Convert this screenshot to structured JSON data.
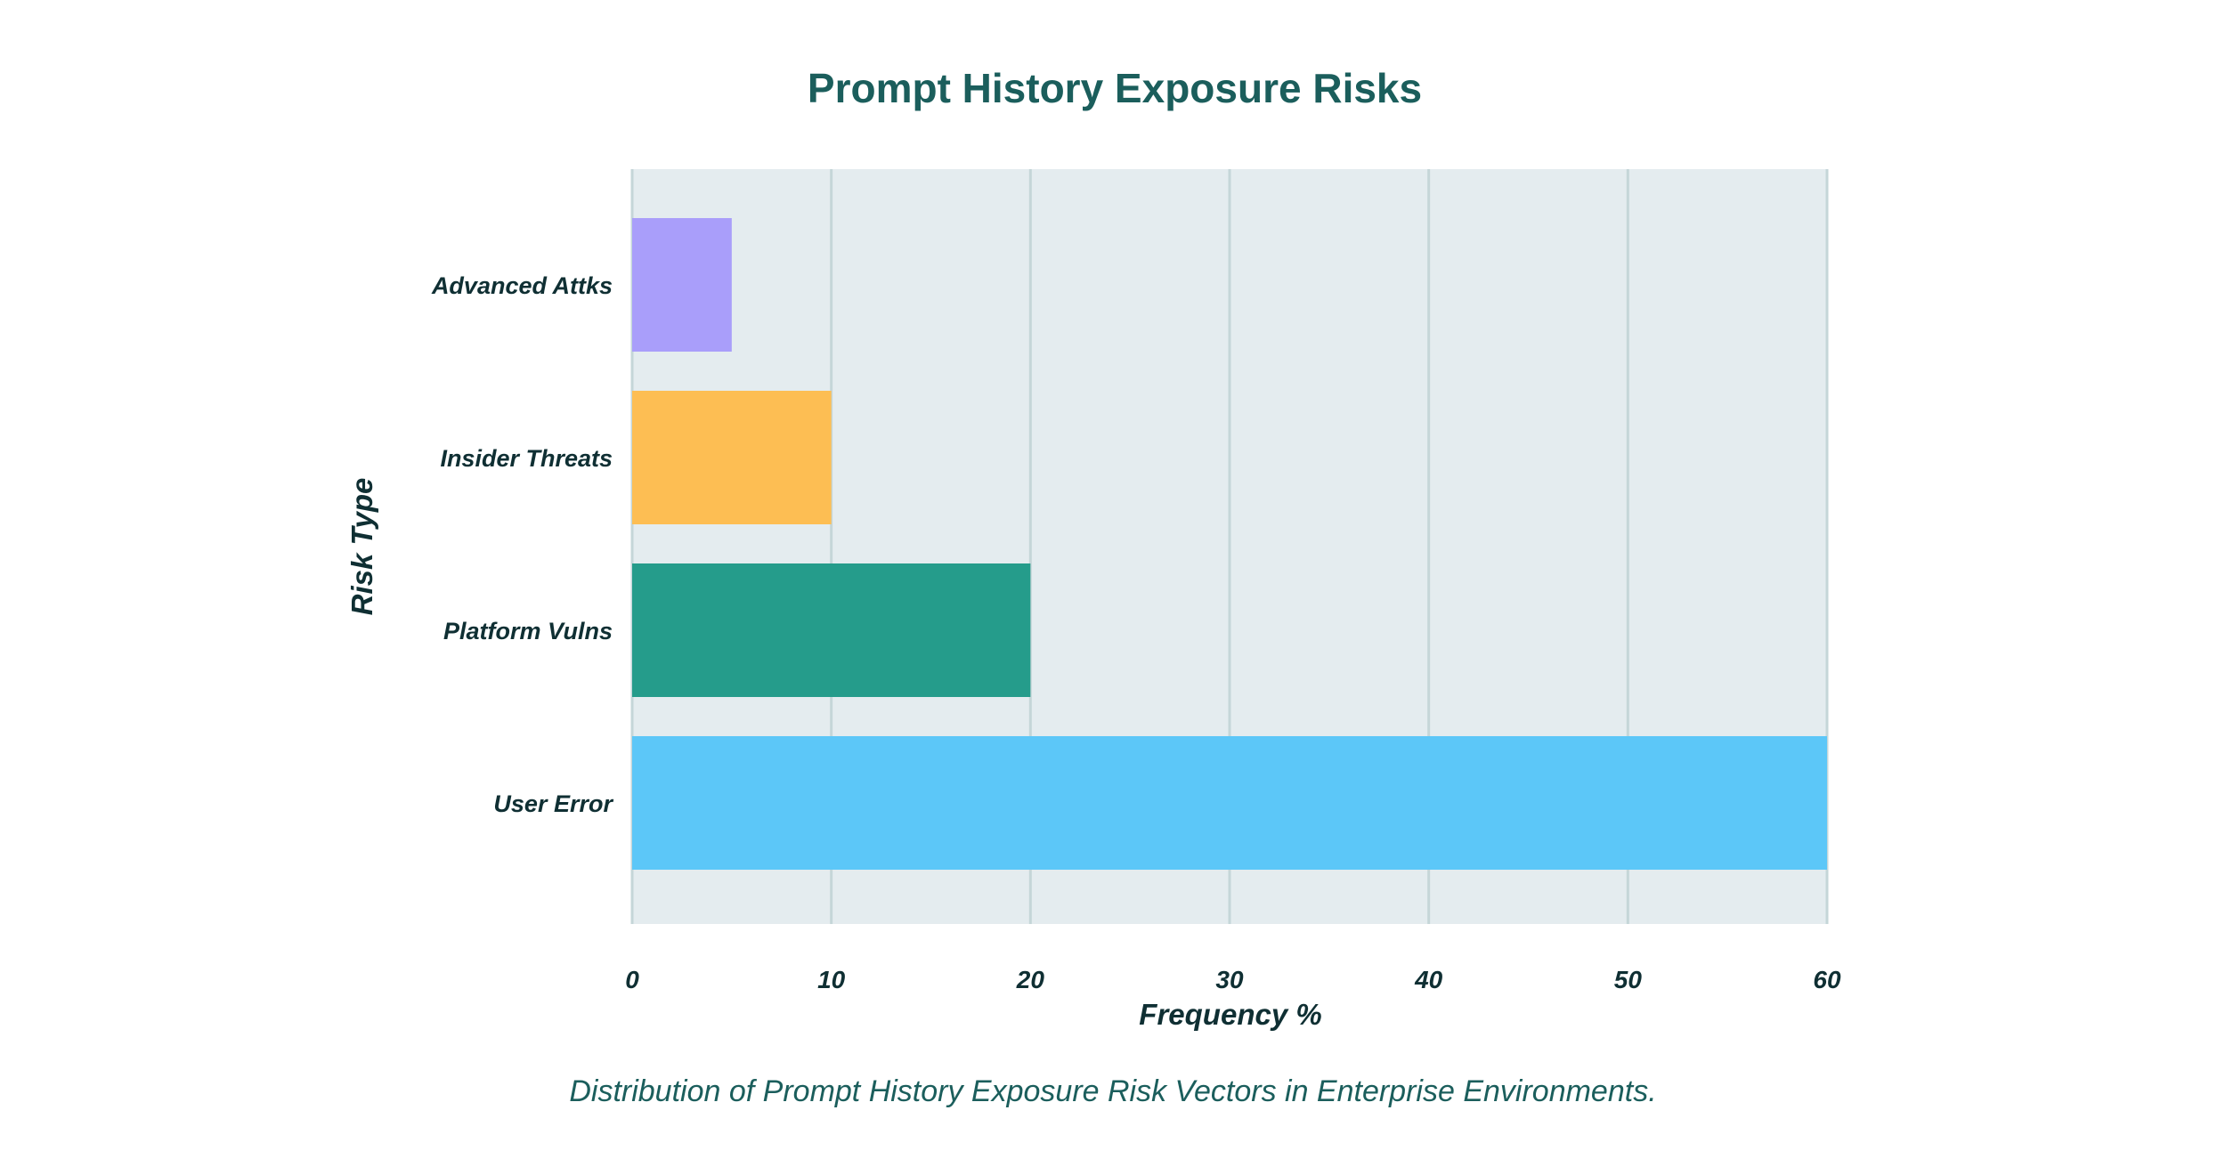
{
  "chart_data": {
    "type": "bar",
    "orientation": "horizontal",
    "title": "Prompt History Exposure Risks",
    "xlabel": "Frequency %",
    "ylabel": "Risk Type",
    "caption": "Distribution of Prompt History Exposure Risk Vectors in Enterprise Environments.",
    "categories": [
      "Advanced Attks",
      "Insider Threats",
      "Platform Vulns",
      "User Error"
    ],
    "values": [
      5,
      10,
      20,
      60
    ],
    "colors": [
      "#a99efa",
      "#fdbe53",
      "#259c8b",
      "#5cc7f8"
    ],
    "xlim": [
      0,
      60
    ],
    "xticks": [
      0,
      10,
      20,
      30,
      40,
      50,
      60
    ],
    "grid": true,
    "plot_background": "#e4ecef",
    "grid_color": "#c5d6d8"
  }
}
